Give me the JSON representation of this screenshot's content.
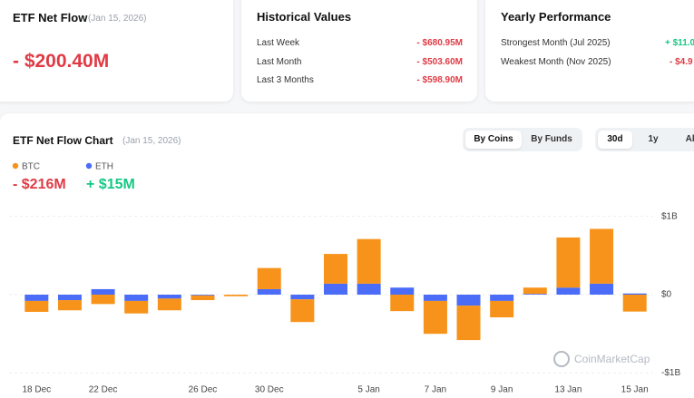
{
  "summary": {
    "title": "ETF Net Flow",
    "date": "(Jan 15, 2026)",
    "value": "- $200.40M"
  },
  "historical": {
    "title": "Historical Values",
    "rows": [
      [
        "Last Week",
        "- $680.95M"
      ],
      [
        "Last Month",
        "- $503.60M"
      ],
      [
        "Last 3 Months",
        "- $598.90M"
      ]
    ]
  },
  "yearly": {
    "title": "Yearly Performance",
    "rows": [
      [
        "Strongest Month (Jul 2025)",
        "+ $11.0"
      ],
      [
        "Weakest Month (Nov 2025)",
        "- $4.9"
      ]
    ]
  },
  "chart_header": {
    "title": "ETF Net Flow Chart",
    "date": "(Jan 15, 2026)",
    "tabs": [
      "By Coins",
      "By Funds"
    ],
    "periods": [
      "30d",
      "1y",
      "All"
    ]
  },
  "legend_totals": [
    "- $216M",
    "+ $15M"
  ],
  "watermark": "CoinMarketCap",
  "chart_data": {
    "type": "bar",
    "stacked": true,
    "categories": [
      "18 Dec",
      null,
      "22 Dec",
      null,
      null,
      "26 Dec",
      null,
      "30 Dec",
      null,
      null,
      "5 Jan",
      null,
      "7 Jan",
      null,
      "9 Jan",
      null,
      "13 Jan",
      null,
      "15 Jan"
    ],
    "series": [
      {
        "name": "BTC",
        "color": "#f7931a",
        "values": [
          -0.14,
          -0.13,
          -0.12,
          -0.16,
          -0.15,
          -0.06,
          -0.02,
          0.27,
          -0.29,
          0.38,
          0.57,
          -0.21,
          -0.42,
          -0.44,
          -0.21,
          0.08,
          0.64,
          0.7,
          -0.216
        ]
      },
      {
        "name": "ETH",
        "color": "#4a6cf7",
        "values": [
          -0.08,
          -0.07,
          0.07,
          -0.08,
          -0.05,
          -0.01,
          0,
          0.07,
          -0.06,
          0.14,
          0.14,
          0.09,
          -0.08,
          -0.14,
          -0.08,
          0.01,
          0.09,
          0.14,
          0.015
        ]
      }
    ],
    "ylim": [
      -1.1,
      1.1
    ],
    "yticks": [
      {
        "value": 1,
        "label": "$1B"
      },
      {
        "value": 0,
        "label": "$0"
      },
      {
        "value": -1,
        "label": "-$1B"
      }
    ],
    "grid": true
  }
}
